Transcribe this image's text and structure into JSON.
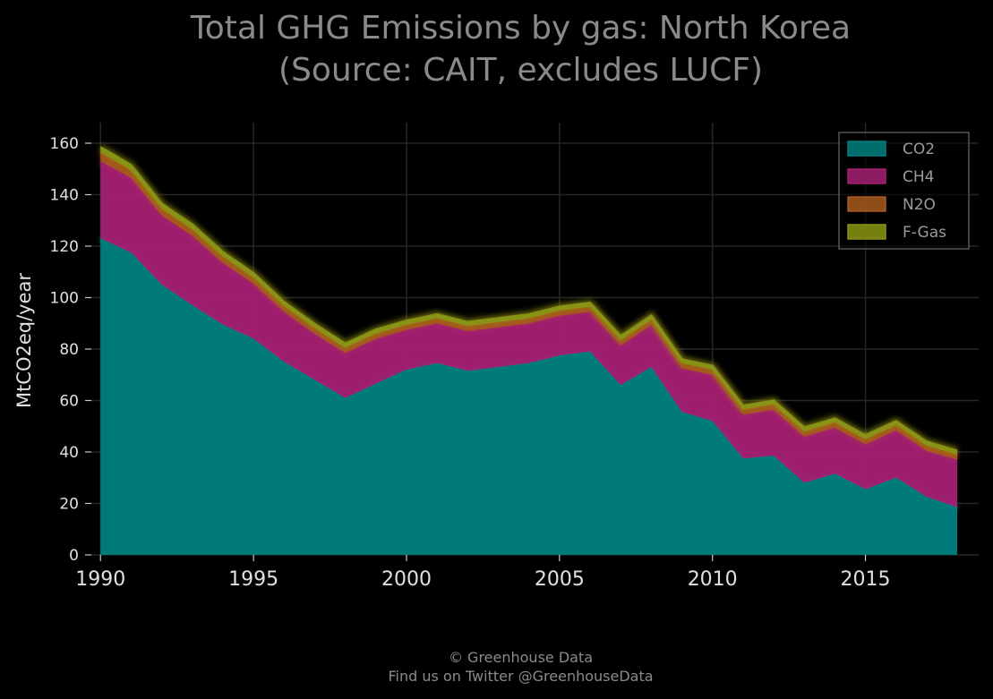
{
  "chart_data": {
    "type": "area",
    "title": "Total GHG Emissions by gas: North Korea\n(Source: CAIT, excludes LUCF)",
    "xlabel": "",
    "ylabel": "MtCO2eq/year",
    "xlim": [
      1989.7,
      2018.7
    ],
    "ylim": [
      0,
      160
    ],
    "stacked": true,
    "grid": true,
    "legend_position": "top-right",
    "x_ticks": [
      1990,
      1995,
      2000,
      2005,
      2010,
      2015
    ],
    "y_ticks": [
      0,
      20,
      40,
      60,
      80,
      100,
      120,
      140,
      160
    ],
    "x": [
      1990,
      1991,
      1992,
      1993,
      1994,
      1995,
      1996,
      1997,
      1998,
      1999,
      2000,
      2001,
      2002,
      2003,
      2004,
      2005,
      2006,
      2007,
      2008,
      2009,
      2010,
      2011,
      2012,
      2013,
      2014,
      2015,
      2016,
      2017,
      2018
    ],
    "series": [
      {
        "name": "CO2",
        "color": "#008080",
        "values": [
          123,
          117.5,
          105,
          97,
          89.5,
          84,
          75,
          68,
          61,
          66.5,
          72,
          74.5,
          71.5,
          73,
          74.5,
          77.5,
          79,
          66,
          73,
          55.5,
          52,
          37.5,
          38.5,
          28,
          31.5,
          25.5,
          30,
          22.5,
          18.5
        ]
      },
      {
        "name": "CH4",
        "color": "#a52072",
        "values": [
          30,
          29,
          27,
          27,
          24,
          21.5,
          19.5,
          18,
          17.5,
          17.5,
          15.5,
          15.5,
          15.5,
          15.5,
          15.5,
          15.5,
          15.5,
          15.5,
          16.5,
          17,
          18,
          17,
          18,
          18,
          18,
          17.5,
          18.5,
          18,
          18.5
        ]
      },
      {
        "name": "N2O",
        "color": "#a85a1c",
        "values": [
          3.5,
          3,
          2.7,
          2.6,
          2.5,
          2.4,
          2.3,
          2.2,
          2.1,
          2.1,
          2,
          2,
          2,
          2,
          2,
          2,
          2,
          2,
          2,
          2,
          2,
          2,
          2,
          2,
          2,
          2,
          2,
          2,
          2
        ]
      },
      {
        "name": "F-Gas",
        "color": "#8a9614",
        "values": [
          2,
          2,
          1.8,
          1.8,
          1.7,
          1.6,
          1.5,
          1.5,
          1.5,
          1.5,
          1.5,
          1.5,
          1.5,
          1.5,
          1.5,
          1.5,
          1.5,
          1.5,
          1.5,
          1.5,
          1.5,
          1.5,
          1.5,
          1.5,
          1.5,
          1.5,
          1.5,
          1.5,
          1.5
        ]
      }
    ]
  },
  "footer": {
    "line1": "© Greenhouse Data",
    "line2": "Find us on Twitter @GreenhouseData"
  }
}
